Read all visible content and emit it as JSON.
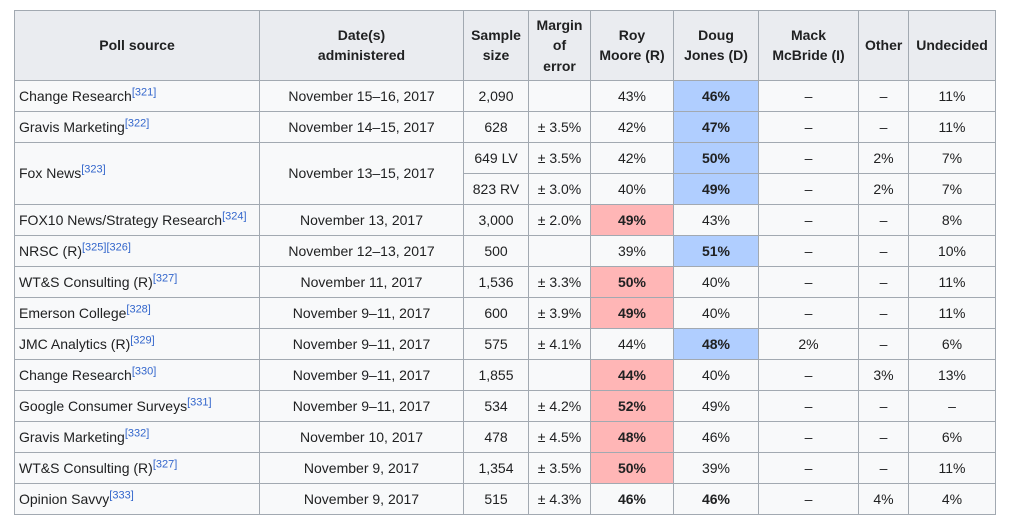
{
  "colors": {
    "dem_highlight": "#b0ceff",
    "gop_highlight": "#ffb6b6",
    "header_bg": "#eaecf0",
    "row_bg": "#f8f9fa",
    "border": "#a2a9b1",
    "reference_link": "#3366cc",
    "text": "#202122"
  },
  "table": {
    "headers": [
      {
        "id": "poll-source",
        "label": "Poll source"
      },
      {
        "id": "dates-administered",
        "label": "Date(s)\nadministered"
      },
      {
        "id": "sample-size",
        "label": "Sample\nsize"
      },
      {
        "id": "margin-of-error",
        "label": "Margin\nof error"
      },
      {
        "id": "roy-moore",
        "label": "Roy\nMoore (R)"
      },
      {
        "id": "doug-jones",
        "label": "Doug\nJones (D)"
      },
      {
        "id": "mack-mcbride",
        "label": "Mack\nMcBride (I)"
      },
      {
        "id": "other",
        "label": "Other"
      },
      {
        "id": "undecided",
        "label": "Undecided"
      }
    ],
    "rows": [
      {
        "source": "Change Research",
        "refs": [
          "[321]"
        ],
        "rowspan": 1,
        "date": "November 15–16, 2017",
        "sample": "2,090",
        "moe": "",
        "moore": "43%",
        "moore_hl": "",
        "jones": "46%",
        "jones_hl": "blue",
        "mcbride": "–",
        "other": "–",
        "undecided": "11%"
      },
      {
        "source": "Gravis Marketing",
        "refs": [
          "[322]"
        ],
        "rowspan": 1,
        "date": "November 14–15, 2017",
        "sample": "628",
        "moe": "± 3.5%",
        "moore": "42%",
        "moore_hl": "",
        "jones": "47%",
        "jones_hl": "blue",
        "mcbride": "–",
        "other": "–",
        "undecided": "11%"
      },
      {
        "source": "Fox News",
        "refs": [
          "[323]"
        ],
        "rowspan": 2,
        "date": "November 13–15, 2017",
        "sample": "649 LV",
        "moe": "± 3.5%",
        "moore": "42%",
        "moore_hl": "",
        "jones": "50%",
        "jones_hl": "blue",
        "mcbride": "–",
        "other": "2%",
        "undecided": "7%"
      },
      {
        "sample": "823 RV",
        "moe": "± 3.0%",
        "moore": "40%",
        "moore_hl": "",
        "jones": "49%",
        "jones_hl": "blue",
        "mcbride": "–",
        "other": "2%",
        "undecided": "7%"
      },
      {
        "source": "FOX10 News/Strategy Research",
        "refs": [
          "[324]"
        ],
        "rowspan": 1,
        "date": "November 13, 2017",
        "sample": "3,000",
        "moe": "± 2.0%",
        "moore": "49%",
        "moore_hl": "red",
        "jones": "43%",
        "jones_hl": "",
        "mcbride": "–",
        "other": "–",
        "undecided": "8%"
      },
      {
        "source": "NRSC (R)",
        "refs": [
          "[325]",
          "[326]"
        ],
        "rowspan": 1,
        "date": "November 12–13, 2017",
        "sample": "500",
        "moe": "",
        "moore": "39%",
        "moore_hl": "",
        "jones": "51%",
        "jones_hl": "blue",
        "mcbride": "–",
        "other": "–",
        "undecided": "10%"
      },
      {
        "source": "WT&S Consulting (R)",
        "refs": [
          "[327]"
        ],
        "rowspan": 1,
        "date": "November 11, 2017",
        "sample": "1,536",
        "moe": "± 3.3%",
        "moore": "50%",
        "moore_hl": "red",
        "jones": "40%",
        "jones_hl": "",
        "mcbride": "–",
        "other": "–",
        "undecided": "11%"
      },
      {
        "source": "Emerson College",
        "refs": [
          "[328]"
        ],
        "rowspan": 1,
        "date": "November 9–11, 2017",
        "sample": "600",
        "moe": "± 3.9%",
        "moore": "49%",
        "moore_hl": "red",
        "jones": "40%",
        "jones_hl": "",
        "mcbride": "–",
        "other": "–",
        "undecided": "11%"
      },
      {
        "source": "JMC Analytics (R)",
        "refs": [
          "[329]"
        ],
        "rowspan": 1,
        "date": "November 9–11, 2017",
        "sample": "575",
        "moe": "± 4.1%",
        "moore": "44%",
        "moore_hl": "",
        "jones": "48%",
        "jones_hl": "blue",
        "mcbride": "2%",
        "other": "–",
        "undecided": "6%"
      },
      {
        "source": "Change Research",
        "refs": [
          "[330]"
        ],
        "rowspan": 1,
        "date": "November 9–11, 2017",
        "sample": "1,855",
        "moe": "",
        "moore": "44%",
        "moore_hl": "red",
        "jones": "40%",
        "jones_hl": "",
        "mcbride": "–",
        "other": "3%",
        "undecided": "13%"
      },
      {
        "source": "Google Consumer Surveys",
        "refs": [
          "[331]"
        ],
        "rowspan": 1,
        "date": "November 9–11, 2017",
        "sample": "534",
        "moe": "± 4.2%",
        "moore": "52%",
        "moore_hl": "red",
        "jones": "49%",
        "jones_hl": "",
        "mcbride": "–",
        "other": "–",
        "undecided": "–"
      },
      {
        "source": "Gravis Marketing",
        "refs": [
          "[332]"
        ],
        "rowspan": 1,
        "date": "November 10, 2017",
        "sample": "478",
        "moe": "± 4.5%",
        "moore": "48%",
        "moore_hl": "red",
        "jones": "46%",
        "jones_hl": "",
        "mcbride": "–",
        "other": "–",
        "undecided": "6%"
      },
      {
        "source": "WT&S Consulting (R)",
        "refs": [
          "[327]"
        ],
        "rowspan": 1,
        "date": "November 9, 2017",
        "sample": "1,354",
        "moe": "± 3.5%",
        "moore": "50%",
        "moore_hl": "red",
        "jones": "39%",
        "jones_hl": "",
        "mcbride": "–",
        "other": "–",
        "undecided": "11%"
      },
      {
        "source": "Opinion Savvy",
        "refs": [
          "[333]"
        ],
        "rowspan": 1,
        "date": "November 9, 2017",
        "sample": "515",
        "moe": "± 4.3%",
        "moore": "46%",
        "moore_hl": "bold",
        "jones": "46%",
        "jones_hl": "bold",
        "mcbride": "–",
        "other": "4%",
        "undecided": "4%"
      }
    ]
  }
}
